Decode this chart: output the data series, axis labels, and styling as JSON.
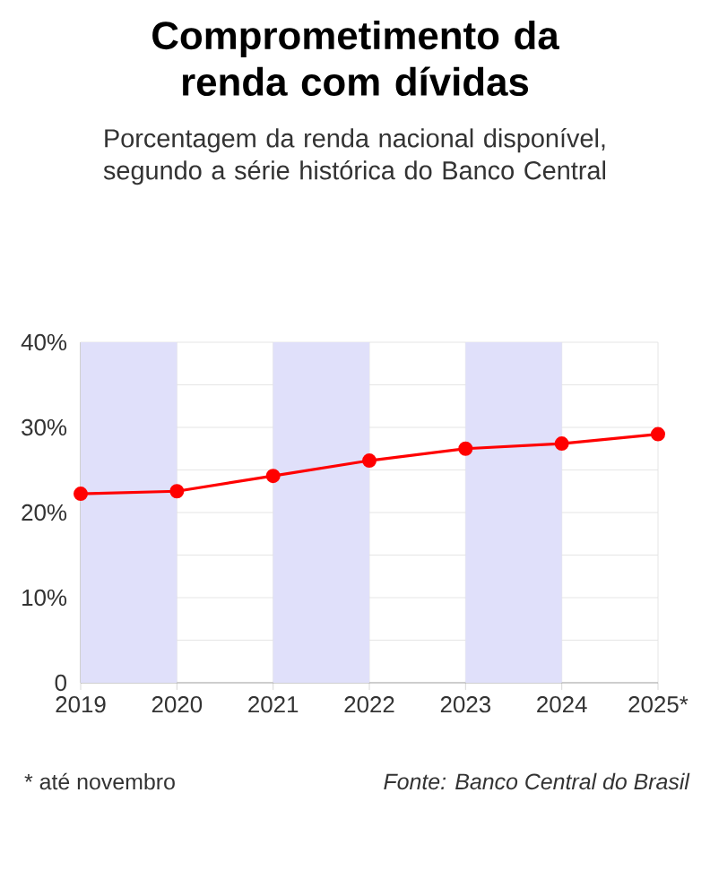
{
  "chart_data": {
    "type": "line",
    "title": "Comprometimento da renda com dívidas",
    "subtitle": "Porcentagem da renda nacional disponível, segundo a série histórica do Banco Central",
    "x": [
      2019,
      2020,
      2021,
      2022,
      2023,
      2024,
      2025
    ],
    "series": [
      {
        "color": "#ff0000",
        "values": [
          22.2,
          22.5,
          24.3,
          26.1,
          27.5,
          28.1,
          29.2
        ]
      }
    ],
    "marker": "circle",
    "line_style": "solid",
    "grid": true,
    "xlim": [
      2019,
      2025
    ],
    "ylim": [
      0,
      40
    ],
    "xticks": [
      2019,
      2020,
      2021,
      2022,
      2023,
      2024,
      {
        "value": 2025,
        "label": "2025*"
      }
    ],
    "yticks": [
      0,
      {
        "value": 5,
        "label": null
      },
      {
        "value": 10,
        "label": "10%"
      },
      {
        "value": 15,
        "label": null
      },
      {
        "value": 20,
        "label": "20%"
      },
      {
        "value": 25,
        "label": null
      },
      {
        "value": 30,
        "label": "30%"
      },
      {
        "value": 35,
        "label": null
      },
      {
        "value": 40,
        "label": "40%"
      }
    ],
    "bands": [
      {
        "axis": "x",
        "from": 2019,
        "to": 2020,
        "color": "#e0e0fa"
      },
      {
        "axis": "x",
        "from": 2021,
        "to": 2022,
        "color": "#e0e0fa"
      },
      {
        "axis": "x",
        "from": 2023,
        "to": 2024,
        "color": "#e0e0fa"
      }
    ],
    "annotations": [
      "* até novembro",
      "Fonte: Banco Central do Brasil"
    ]
  }
}
